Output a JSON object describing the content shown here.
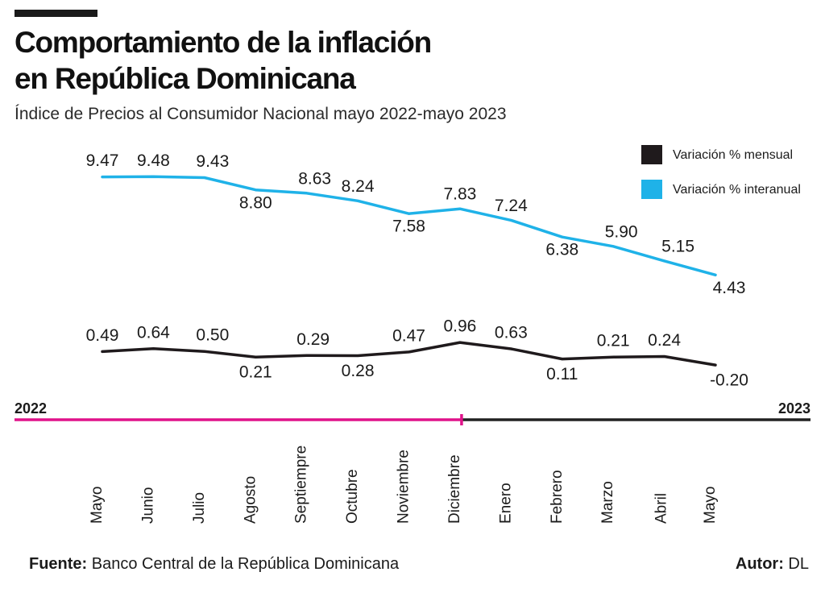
{
  "header": {
    "title_line1": "Comportamiento de la inflación",
    "title_line2": "en República Dominicana",
    "subtitle": "Índice de Precios al Consumidor Nacional mayo 2022-mayo 2023"
  },
  "footer": {
    "source_label": "Fuente:",
    "source_value": "Banco Central de la República Dominicana",
    "author_label": "Autor:",
    "author_value": "DL"
  },
  "chart_data": {
    "type": "line",
    "categories": [
      "Mayo",
      "Junio",
      "Julio",
      "Agosto",
      "Septiempre",
      "Octubre",
      "Noviembre",
      "Diciembre",
      "Enero",
      "Febrero",
      "Marzo",
      "Abril",
      "Mayo"
    ],
    "series": [
      {
        "name": "Variación % mensual",
        "color": "#1f1a1c",
        "values": [
          0.49,
          0.64,
          0.5,
          0.21,
          0.29,
          0.28,
          0.47,
          0.96,
          0.63,
          0.11,
          0.21,
          0.24,
          -0.2
        ],
        "labels": [
          "0.49",
          "0.64",
          "0.50",
          "0.21",
          "0.29",
          "0.28",
          "0.47",
          "0.96",
          "0.63",
          "0.11",
          "0.21",
          "0.24",
          "-0.20"
        ]
      },
      {
        "name": "Variación % interanual",
        "color": "#1fb2e8",
        "values": [
          9.47,
          9.48,
          9.43,
          8.8,
          8.63,
          8.24,
          7.58,
          7.83,
          7.24,
          6.38,
          5.9,
          5.15,
          4.43
        ],
        "labels": [
          "9.47",
          "9.48",
          "9.43",
          "8.80",
          "8.63",
          "8.24",
          "7.58",
          "7.83",
          "7.24",
          "6.38",
          "5.90",
          "5.15",
          "4.43"
        ]
      }
    ],
    "timeline": {
      "start_year": "2022",
      "end_year": "2023",
      "color_2022": "#e0128a",
      "color_2023": "#222222"
    },
    "legend_position": "top-right",
    "grid": false
  }
}
